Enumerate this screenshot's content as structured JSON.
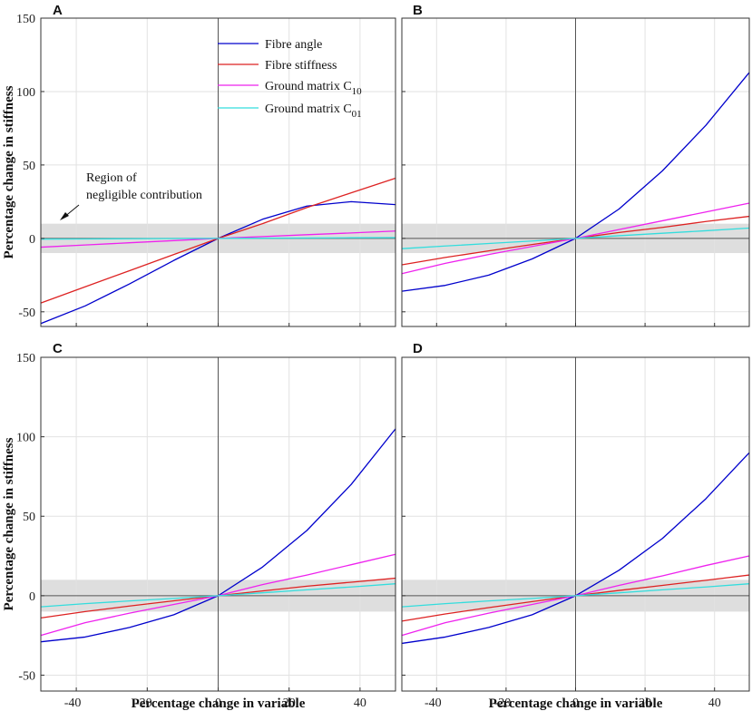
{
  "chart_data": [
    {
      "type": "line",
      "panel": "A",
      "xlim": [
        -50,
        50
      ],
      "ylim": [
        -60,
        150
      ],
      "x_ticks": [
        -40,
        -20,
        0,
        20,
        40
      ],
      "y_ticks": [
        -50,
        0,
        50,
        100,
        150
      ],
      "grid": true,
      "negligible_band": [
        -10,
        10
      ],
      "xlabel": "",
      "ylabel": "Percentage change in stiffness",
      "annotation": {
        "line1": "Region of",
        "line2": "negligible contribution"
      },
      "legend": {
        "placement": "top-center",
        "entries": [
          {
            "text": "Fibre angle",
            "sub": ""
          },
          {
            "text": "Fibre stiffness",
            "sub": ""
          },
          {
            "text": "Ground matrix C",
            "sub": "10"
          },
          {
            "text": "Ground matrix C",
            "sub": "01"
          }
        ]
      },
      "x": [
        -50,
        -37.5,
        -25,
        -12.5,
        0,
        12.5,
        25,
        37.5,
        50
      ],
      "series": [
        {
          "name": "Fibre angle",
          "color": "#0000cc",
          "values": [
            -58,
            -46,
            -31,
            -15,
            0,
            13,
            22,
            25,
            23
          ]
        },
        {
          "name": "Fibre stiffness",
          "color": "#dd2222",
          "values": [
            -44,
            -33,
            -22,
            -11,
            0,
            10,
            21,
            31,
            41
          ]
        },
        {
          "name": "Ground matrix C10",
          "color": "#ee22ee",
          "values": [
            -6,
            -4.5,
            -3,
            -1.5,
            0,
            1.2,
            2.5,
            3.7,
            5
          ]
        },
        {
          "name": "Ground matrix C01",
          "color": "#33dddd",
          "values": [
            -0.5,
            -0.4,
            -0.25,
            -0.1,
            0,
            0.1,
            0.25,
            0.4,
            0.5
          ]
        }
      ]
    },
    {
      "type": "line",
      "panel": "B",
      "xlim": [
        -50,
        50
      ],
      "ylim": [
        -60,
        150
      ],
      "x_ticks": [
        -40,
        -20,
        0,
        20,
        40
      ],
      "y_ticks": [
        -50,
        0,
        50,
        100,
        150
      ],
      "grid": true,
      "negligible_band": [
        -10,
        10
      ],
      "xlabel": "",
      "ylabel": "",
      "x": [
        -50,
        -37.5,
        -25,
        -12.5,
        0,
        12.5,
        25,
        37.5,
        50
      ],
      "series": [
        {
          "name": "Fibre angle",
          "color": "#0000cc",
          "values": [
            -36,
            -32,
            -25,
            -14,
            0,
            20,
            46,
            77,
            113
          ]
        },
        {
          "name": "Fibre stiffness",
          "color": "#dd2222",
          "values": [
            -18,
            -13,
            -8.5,
            -4.2,
            0,
            4,
            7.5,
            11.5,
            15
          ]
        },
        {
          "name": "Ground matrix C10",
          "color": "#ee22ee",
          "values": [
            -24,
            -17,
            -11,
            -5.5,
            0,
            6,
            12,
            18,
            24
          ]
        },
        {
          "name": "Ground matrix C01",
          "color": "#33dddd",
          "values": [
            -7,
            -5.2,
            -3.5,
            -1.8,
            0,
            1.8,
            3.5,
            5.2,
            7
          ]
        }
      ]
    },
    {
      "type": "line",
      "panel": "C",
      "xlim": [
        -50,
        50
      ],
      "ylim": [
        -60,
        150
      ],
      "x_ticks": [
        -40,
        -20,
        0,
        20,
        40
      ],
      "x_tick_labels": [
        "-40",
        "-20",
        "0",
        "20",
        "40"
      ],
      "y_ticks": [
        -50,
        0,
        50,
        100,
        150
      ],
      "grid": true,
      "negligible_band": [
        -10,
        10
      ],
      "xlabel": "Percentage change in variable",
      "ylabel": "Percentage change in stiffness",
      "x": [
        -50,
        -37.5,
        -25,
        -12.5,
        0,
        12.5,
        25,
        37.5,
        50
      ],
      "series": [
        {
          "name": "Fibre angle",
          "color": "#0000cc",
          "values": [
            -29,
            -26,
            -20,
            -12,
            0,
            18,
            41,
            70,
            105
          ]
        },
        {
          "name": "Fibre stiffness",
          "color": "#dd2222",
          "values": [
            -14,
            -10,
            -6.5,
            -3.2,
            0,
            3,
            6,
            8.5,
            11
          ]
        },
        {
          "name": "Ground matrix C10",
          "color": "#ee22ee",
          "values": [
            -25,
            -17,
            -11,
            -5.5,
            0,
            7,
            13,
            19.5,
            26
          ]
        },
        {
          "name": "Ground matrix C01",
          "color": "#33dddd",
          "values": [
            -7,
            -5,
            -3.3,
            -1.7,
            0,
            1.8,
            3.7,
            5.5,
            7.5
          ]
        }
      ]
    },
    {
      "type": "line",
      "panel": "D",
      "xlim": [
        -50,
        50
      ],
      "ylim": [
        -60,
        150
      ],
      "x_ticks": [
        -40,
        -20,
        0,
        20,
        40
      ],
      "x_tick_labels": [
        "-40",
        "-20",
        "0",
        "20",
        "40"
      ],
      "y_ticks": [
        -50,
        0,
        50,
        100,
        150
      ],
      "grid": true,
      "negligible_band": [
        -10,
        10
      ],
      "xlabel": "Percentage change in variable",
      "ylabel": "",
      "x": [
        -50,
        -37.5,
        -25,
        -12.5,
        0,
        12.5,
        25,
        37.5,
        50
      ],
      "series": [
        {
          "name": "Fibre angle",
          "color": "#0000cc",
          "values": [
            -30,
            -26,
            -20,
            -12,
            0,
            16,
            36,
            61,
            90
          ]
        },
        {
          "name": "Fibre stiffness",
          "color": "#dd2222",
          "values": [
            -16,
            -11.5,
            -7.5,
            -3.7,
            0,
            3.3,
            6.5,
            9.7,
            13
          ]
        },
        {
          "name": "Ground matrix C10",
          "color": "#ee22ee",
          "values": [
            -25,
            -17,
            -11,
            -5.5,
            0,
            6.5,
            12.5,
            19,
            25
          ]
        },
        {
          "name": "Ground matrix C01",
          "color": "#33dddd",
          "values": [
            -7,
            -5,
            -3.3,
            -1.7,
            0,
            1.8,
            3.7,
            5.5,
            7.5
          ]
        }
      ]
    }
  ]
}
